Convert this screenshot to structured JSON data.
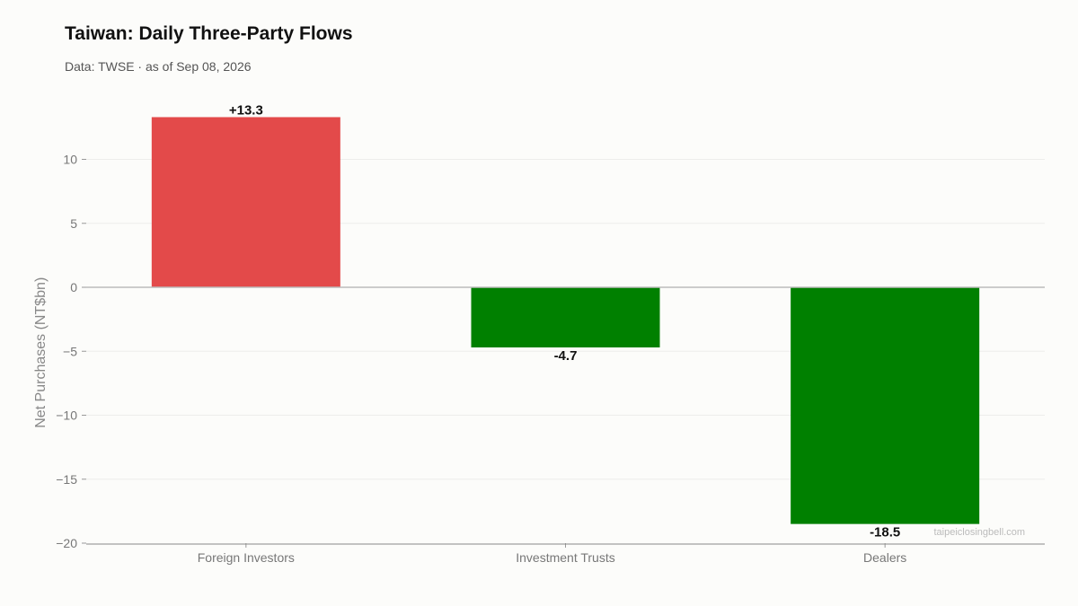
{
  "chart_data": {
    "type": "bar",
    "title": "Taiwan: Daily Three-Party Flows",
    "subtitle": "Data: TWSE · as of Sep 08, 2026",
    "ylabel": "Net Purchases (NT$bn)",
    "xlabel": "",
    "categories": [
      "Foreign Investors",
      "Investment Trusts",
      "Dealers"
    ],
    "values": [
      13.3,
      -4.7,
      -18.5
    ],
    "data_labels": [
      "+13.3",
      "-4.7",
      "-18.5"
    ],
    "ylim": [
      -20,
      14
    ],
    "yticks": [
      10,
      5,
      0,
      -5,
      -10,
      -15,
      -20
    ],
    "ytick_labels": [
      "10",
      "5",
      "0",
      "−5",
      "−10",
      "−15",
      "−20"
    ],
    "grid": true,
    "colors": {
      "positive": "#e34a4a",
      "negative": "#008000"
    },
    "watermark": "taipeiclosingbell.com"
  }
}
